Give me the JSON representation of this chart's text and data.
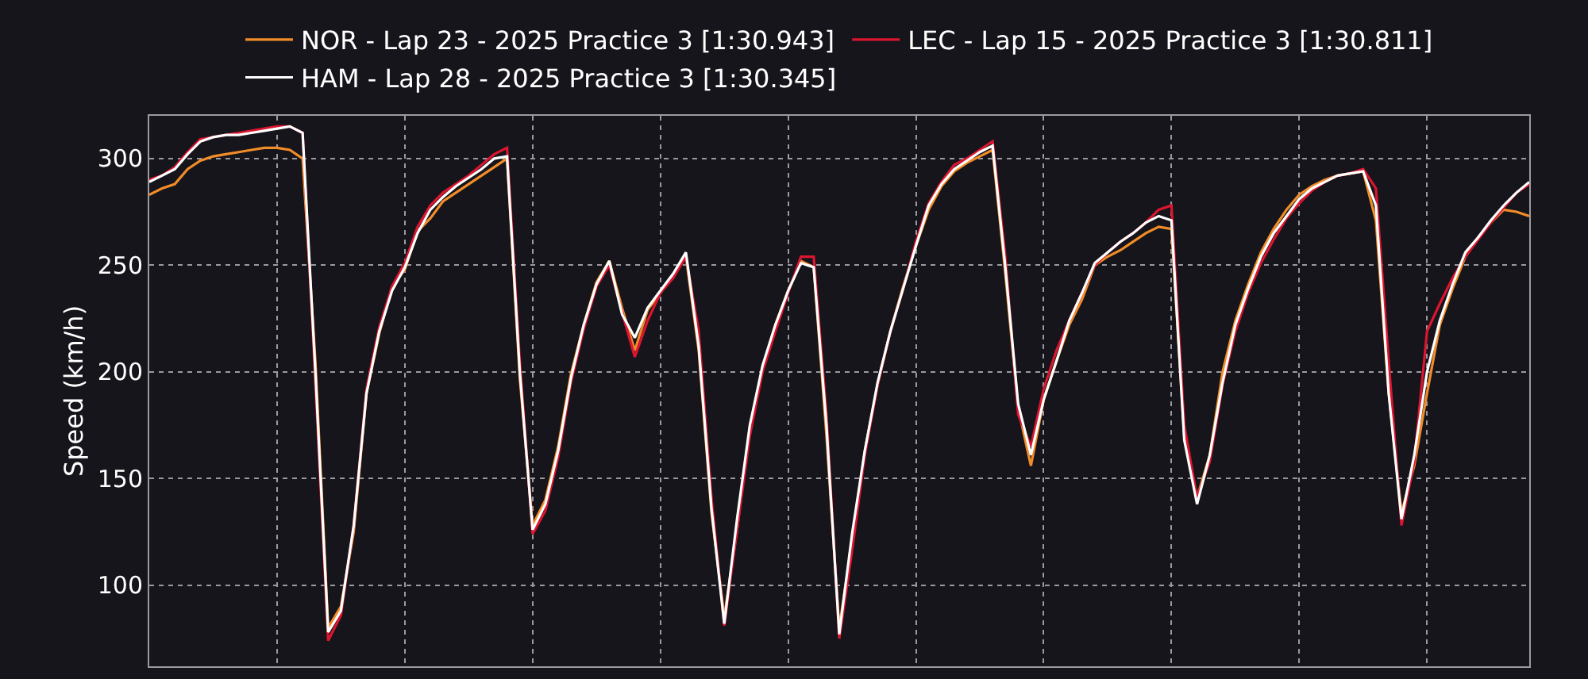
{
  "chart_data": {
    "type": "line",
    "ylabel": "Speed (km/h)",
    "categories": [
      null,
      null,
      null,
      null,
      null,
      null,
      null,
      null,
      null,
      null,
      null,
      null,
      null,
      null,
      null,
      null,
      null,
      null,
      null,
      null,
      null,
      null,
      null,
      null,
      null,
      null,
      null,
      null,
      null,
      null,
      null,
      null,
      null,
      null,
      null,
      null,
      null,
      null,
      null,
      null,
      null,
      null,
      null,
      null,
      null,
      null,
      null,
      null,
      null,
      null,
      null,
      null,
      null,
      null,
      null,
      null,
      null,
      null,
      null,
      null,
      null,
      null,
      null,
      null,
      null,
      null,
      null,
      null,
      null,
      null,
      null,
      null,
      null,
      null,
      null,
      null,
      null,
      null,
      null,
      null,
      null,
      null,
      null,
      null,
      null,
      null,
      null,
      null,
      null,
      null,
      null,
      null,
      null,
      null,
      null,
      null,
      null,
      null,
      null,
      null,
      null,
      null,
      null,
      null,
      null,
      null,
      null,
      null,
      null
    ],
    "series": [
      {
        "name": "NOR - Lap 23 - 2025 Practice 3 [1:30.943]",
        "color": "#f28c28",
        "values": [
          283,
          286,
          288,
          295,
          299,
          301,
          302,
          303,
          304,
          305,
          305,
          304,
          300,
          205,
          80,
          90,
          125,
          190,
          218,
          240,
          248,
          266,
          272,
          280,
          284,
          288,
          292,
          296,
          300,
          197,
          128,
          140,
          165,
          199,
          222,
          242,
          252,
          230,
          210,
          229,
          237,
          245,
          254,
          210,
          134,
          85,
          126,
          174,
          202,
          222,
          238,
          252,
          249,
          170,
          80,
          121,
          163,
          194,
          219,
          240,
          259,
          276,
          287,
          294,
          298,
          301,
          304,
          246,
          183,
          156,
          187,
          205,
          222,
          234,
          250,
          254,
          257,
          261,
          265,
          268,
          267,
          170,
          141,
          161,
          200,
          224,
          241,
          256,
          267,
          276,
          283,
          287,
          290,
          292,
          293,
          294,
          271,
          190,
          134,
          156,
          190,
          222,
          239,
          254,
          263,
          270,
          276,
          275,
          273
        ]
      },
      {
        "name": "LEC - Lap 15 - 2025 Practice 3 [1:30.811]",
        "color": "#dc1530",
        "values": [
          290,
          292,
          296,
          303,
          309,
          310,
          311,
          312,
          313,
          314,
          315,
          315,
          312,
          195,
          74,
          86,
          128,
          192,
          221,
          240,
          251,
          268,
          278,
          284,
          288,
          292,
          297,
          302,
          305,
          205,
          124,
          135,
          160,
          195,
          220,
          240,
          250,
          228,
          207,
          224,
          237,
          244,
          254,
          219,
          141,
          81,
          126,
          170,
          200,
          219,
          237,
          254,
          254,
          180,
          75,
          116,
          161,
          194,
          219,
          239,
          261,
          279,
          289,
          297,
          300,
          304,
          308,
          254,
          180,
          165,
          192,
          210,
          224,
          237,
          250,
          256,
          261,
          265,
          270,
          276,
          278,
          175,
          141,
          158,
          194,
          219,
          237,
          251,
          262,
          272,
          279,
          285,
          289,
          292,
          293,
          295,
          286,
          205,
          128,
          158,
          219,
          232,
          244,
          254,
          262,
          270,
          277,
          284,
          288
        ]
      },
      {
        "name": "HAM - Lap 28 - 2025 Practice 3 [1:30.345]",
        "color": "#ffffff",
        "values": [
          289,
          292,
          295,
          302,
          308,
          310,
          311,
          311,
          312,
          313,
          314,
          315,
          312,
          200,
          78,
          88,
          128,
          190,
          219,
          238,
          249,
          265,
          276,
          282,
          287,
          291,
          295,
          300,
          301,
          200,
          126,
          138,
          163,
          197,
          222,
          241,
          252,
          227,
          216,
          230,
          238,
          246,
          256,
          212,
          136,
          82,
          131,
          175,
          203,
          222,
          238,
          251,
          249,
          175,
          77,
          124,
          163,
          195,
          219,
          239,
          259,
          278,
          288,
          295,
          299,
          303,
          306,
          249,
          185,
          161,
          187,
          205,
          224,
          237,
          251,
          256,
          261,
          265,
          270,
          273,
          271,
          168,
          138,
          161,
          195,
          222,
          239,
          254,
          265,
          273,
          281,
          286,
          289,
          292,
          293,
          294,
          278,
          190,
          131,
          161,
          200,
          224,
          241,
          256,
          263,
          271,
          278,
          284,
          289
        ]
      }
    ],
    "ylim": [
      62,
      320
    ],
    "yticks": [
      100,
      150,
      200,
      250,
      300
    ],
    "grid": true,
    "legend": "top",
    "line_style": "solid",
    "tick_labels": "y"
  }
}
